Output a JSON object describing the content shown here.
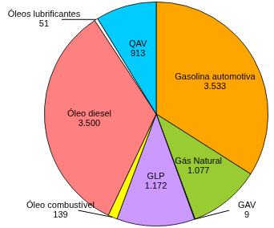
{
  "chart_data": {
    "type": "pie",
    "categories": [
      "Gasolina automotiva",
      "Gás Natural",
      "GAV",
      "GLP",
      "Óleo combustível",
      "Óleo diesel",
      "Óleos lubrificantes",
      "QAV"
    ],
    "values": [
      3533,
      1077,
      9,
      1172,
      139,
      3500,
      51,
      913
    ],
    "value_labels": [
      "3.533",
      "1.077",
      "9",
      "1.172",
      "139",
      "3.500",
      "51",
      "913"
    ],
    "colors": [
      "#ffa500",
      "#99cc33",
      "#3366cc",
      "#cc99ff",
      "#ffff00",
      "#ff8080",
      "#ffffff",
      "#00ccff"
    ],
    "data_labels": true
  }
}
